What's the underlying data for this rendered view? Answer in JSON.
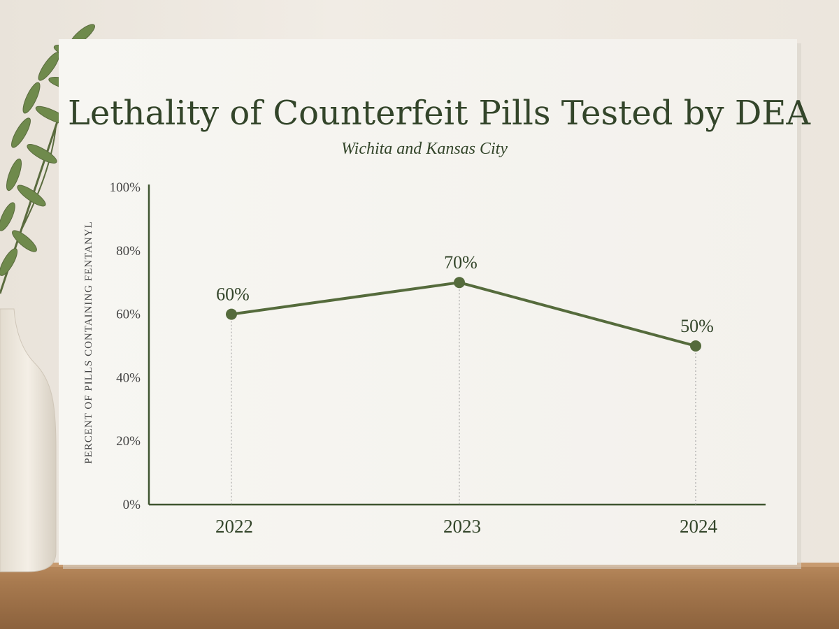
{
  "poster": {
    "title": "Lethality of Counterfeit Pills Tested by DEA",
    "subtitle": "Wichita and Kansas City"
  },
  "colors": {
    "accent": "#556b3c",
    "text": "#33452a",
    "axis": "#3f5530",
    "tick_text": "#444444",
    "guide": "#9a9a9a"
  },
  "chart_data": {
    "type": "line",
    "title": "Lethality of Counterfeit Pills Tested by DEA",
    "subtitle": "Wichita and Kansas City",
    "categories": [
      "2022",
      "2023",
      "2024"
    ],
    "series": [
      {
        "values": [
          60,
          70,
          50
        ],
        "labels": [
          "60%",
          "70%",
          "50%"
        ]
      }
    ],
    "xlabel": "",
    "ylabel": "PERCENT OF PILLS CONTAINING FENTANYL",
    "ylim": [
      0,
      100
    ],
    "yticks": [
      0,
      20,
      40,
      60,
      80,
      100
    ],
    "ytick_labels": [
      "0%",
      "20%",
      "40%",
      "60%",
      "80%",
      "100%"
    ],
    "grid": false,
    "legend": "none"
  }
}
